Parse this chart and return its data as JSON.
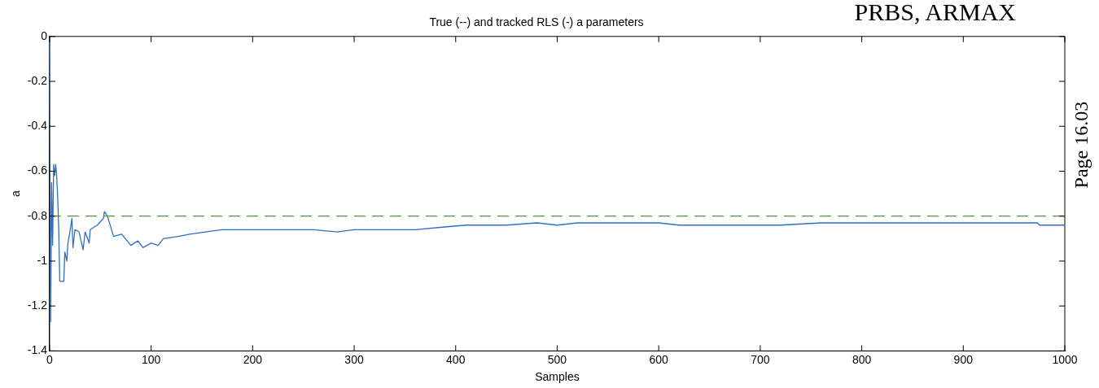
{
  "chart_data": {
    "type": "line",
    "title": "True (--) and tracked RLS (-) a parameters",
    "xlabel": "Samples",
    "ylabel": "a",
    "annotations": [
      "PRBS, ARMAX",
      "Page 16.03"
    ],
    "series": [
      {
        "color": "#2f6fc4",
        "x": [
          0,
          1,
          2,
          3,
          4,
          5,
          6,
          7,
          8,
          9,
          10,
          14,
          15,
          17,
          18,
          20,
          22,
          23,
          25,
          29,
          33,
          35,
          39,
          40,
          47,
          53,
          54,
          57,
          63,
          71,
          80,
          87,
          92,
          100,
          107,
          112,
          127,
          138,
          154,
          170,
          200,
          230,
          260,
          283,
          300,
          330,
          360,
          385,
          410,
          450,
          480,
          500,
          520,
          560,
          600,
          620,
          650,
          700,
          720,
          760,
          800,
          900,
          973,
          975,
          1000
        ],
        "values": [
          0,
          -1.27,
          -0.65,
          -0.93,
          -0.57,
          -0.62,
          -0.57,
          -0.62,
          -0.72,
          -0.86,
          -1.09,
          -1.09,
          -0.96,
          -1.0,
          -0.92,
          -0.87,
          -0.81,
          -0.94,
          -0.86,
          -0.87,
          -0.95,
          -0.87,
          -0.92,
          -0.86,
          -0.84,
          -0.81,
          -0.78,
          -0.8,
          -0.89,
          -0.88,
          -0.93,
          -0.91,
          -0.94,
          -0.92,
          -0.93,
          -0.9,
          -0.89,
          -0.88,
          -0.87,
          -0.86,
          -0.86,
          -0.86,
          -0.86,
          -0.87,
          -0.86,
          -0.86,
          -0.86,
          -0.85,
          -0.84,
          -0.84,
          -0.83,
          -0.84,
          -0.83,
          -0.83,
          -0.83,
          -0.84,
          -0.84,
          -0.84,
          -0.84,
          -0.83,
          -0.83,
          -0.83,
          -0.83,
          -0.84,
          -0.84
        ]
      }
    ],
    "ref_lines": [
      {
        "axis": "y",
        "value": -0.8,
        "color": "#4c9a3c",
        "line_style": "dashed"
      }
    ],
    "xlim": [
      0,
      1000
    ],
    "xticks": [
      0,
      100,
      200,
      300,
      400,
      500,
      600,
      700,
      800,
      900,
      1000
    ],
    "ylim": [
      -1.4,
      0
    ],
    "yticks": [
      -1.4,
      -1.2,
      -1,
      -0.8,
      -0.6,
      -0.4,
      -0.2,
      0
    ],
    "grid": false,
    "legend": false,
    "marker": "none",
    "line_style": "solid"
  }
}
